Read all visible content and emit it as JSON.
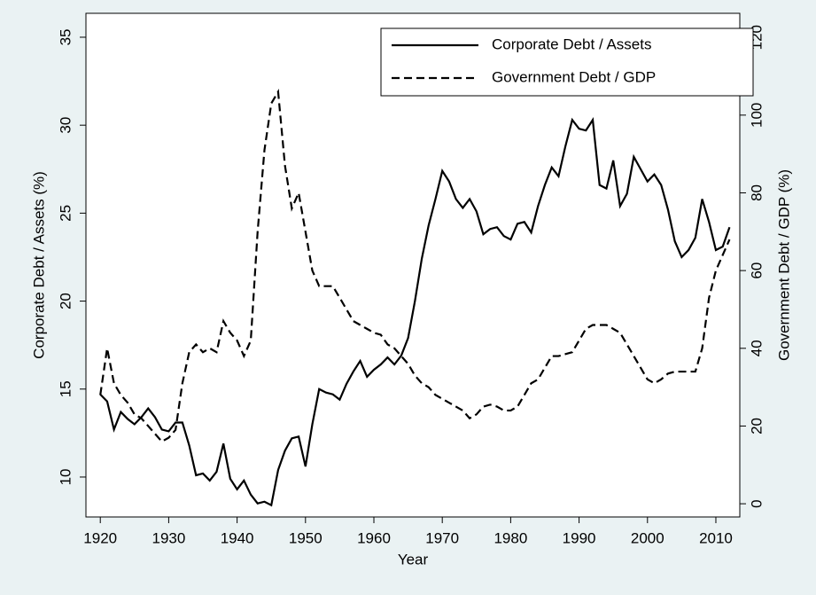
{
  "chart_data": {
    "type": "line",
    "x": [
      1920,
      1921,
      1922,
      1923,
      1924,
      1925,
      1926,
      1927,
      1928,
      1929,
      1930,
      1931,
      1932,
      1933,
      1934,
      1935,
      1936,
      1937,
      1938,
      1939,
      1940,
      1941,
      1942,
      1943,
      1944,
      1945,
      1946,
      1947,
      1948,
      1949,
      1950,
      1951,
      1952,
      1953,
      1954,
      1955,
      1956,
      1957,
      1958,
      1959,
      1960,
      1961,
      1962,
      1963,
      1964,
      1965,
      1966,
      1967,
      1968,
      1969,
      1970,
      1971,
      1972,
      1973,
      1974,
      1975,
      1976,
      1977,
      1978,
      1979,
      1980,
      1981,
      1982,
      1983,
      1984,
      1985,
      1986,
      1987,
      1988,
      1989,
      1990,
      1991,
      1992,
      1993,
      1994,
      1995,
      1996,
      1997,
      1998,
      1999,
      2000,
      2001,
      2002,
      2003,
      2004,
      2005,
      2006,
      2007,
      2008,
      2009,
      2010,
      2011,
      2012
    ],
    "series": [
      {
        "name": "Corporate Debt / Assets",
        "color": "#000000",
        "style": "solid",
        "axis": "y",
        "values": [
          14.7,
          14.3,
          12.7,
          13.7,
          13.3,
          13.0,
          13.4,
          13.9,
          13.4,
          12.7,
          12.6,
          13.1,
          13.1,
          11.8,
          10.1,
          10.2,
          9.8,
          10.3,
          11.9,
          9.9,
          9.3,
          9.8,
          9.0,
          8.5,
          8.6,
          8.4,
          10.4,
          11.5,
          12.2,
          12.3,
          10.6,
          13.0,
          15.0,
          14.8,
          14.7,
          14.4,
          15.3,
          16.0,
          16.6,
          15.7,
          16.1,
          16.4,
          16.8,
          16.4,
          16.9,
          17.9,
          20.0,
          22.4,
          24.3,
          25.8,
          27.4,
          26.8,
          25.8,
          25.3,
          25.8,
          25.1,
          23.8,
          24.1,
          24.2,
          23.7,
          23.5,
          24.4,
          24.5,
          23.9,
          25.4,
          26.6,
          27.6,
          27.1,
          28.8,
          30.3,
          29.8,
          29.7,
          30.3,
          26.6,
          26.4,
          28.0,
          25.4,
          26.1,
          28.2,
          27.5,
          26.8,
          27.2,
          26.6,
          25.2,
          23.4,
          22.5,
          22.9,
          23.6,
          25.8,
          24.5,
          22.9,
          23.1,
          24.2
        ]
      },
      {
        "name": "Government Debt / GDP",
        "color": "#000000",
        "style": "dashed",
        "axis": "y2",
        "values": [
          28,
          40,
          31,
          28,
          26,
          23,
          22,
          20,
          18,
          16,
          17,
          19,
          31,
          39,
          41,
          39,
          40,
          39,
          47,
          44,
          42,
          38,
          42,
          70,
          91,
          103,
          106,
          87,
          76,
          80,
          70,
          60,
          56,
          56,
          56,
          53,
          50,
          47,
          46,
          45,
          44,
          43.5,
          41,
          40,
          38,
          36,
          33,
          31,
          30,
          28,
          27,
          26,
          25,
          24,
          22,
          23,
          25,
          25.5,
          25,
          24,
          24,
          25,
          28,
          31,
          32,
          35,
          38,
          38,
          38.5,
          39,
          42,
          45,
          46,
          46,
          46,
          45,
          44,
          41,
          38,
          35,
          32,
          31,
          32,
          33.5,
          34,
          34,
          34,
          34,
          40,
          53,
          60,
          64,
          68
        ]
      }
    ],
    "x_label": "Year",
    "y_label": "Corporate Debt / Assets (%)",
    "y2_label": "Government Debt / GDP (%)",
    "xlim": [
      1917.9,
      2013.5
    ],
    "xticks": [
      1920,
      1930,
      1940,
      1950,
      1960,
      1970,
      1980,
      1990,
      2000,
      2010
    ],
    "ylim": [
      7.73,
      36.36
    ],
    "yticks": [
      10,
      15,
      20,
      25,
      30,
      35
    ],
    "y2lim": [
      -3.4,
      126.2
    ],
    "y2ticks": [
      0,
      20,
      40,
      60,
      80,
      100,
      120
    ],
    "legend": "top-right",
    "grid": false
  }
}
